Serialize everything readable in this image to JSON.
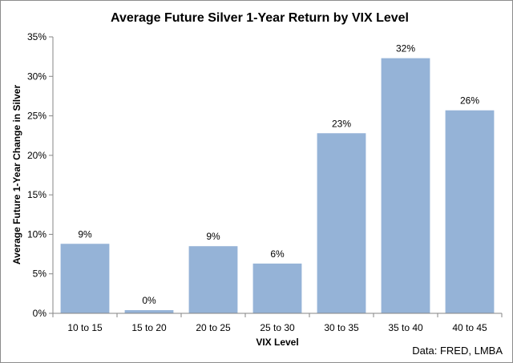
{
  "chart_data": {
    "type": "bar",
    "title": "Average Future Silver 1-Year Return by VIX Level",
    "xlabel": "VIX Level",
    "ylabel": "Average Future 1-Year Change in  Silver",
    "categories": [
      "10 to 15",
      "15 to 20",
      "20 to 25",
      "25 to 30",
      "30 to 35",
      "35 to 40",
      "40 to 45"
    ],
    "values": [
      8.8,
      0.4,
      8.5,
      6.3,
      22.8,
      32.3,
      25.7
    ],
    "data_labels": [
      "9%",
      "0%",
      "9%",
      "6%",
      "23%",
      "32%",
      "26%"
    ],
    "ylim": [
      0,
      35
    ],
    "yticks": [
      0,
      5,
      10,
      15,
      20,
      25,
      30,
      35
    ],
    "ytick_labels": [
      "0%",
      "5%",
      "10%",
      "15%",
      "20%",
      "25%",
      "30%",
      "35%"
    ],
    "bar_color": "#95b3d7",
    "grid": false,
    "legend": "none"
  },
  "source_note": "Data: FRED, LMBA"
}
